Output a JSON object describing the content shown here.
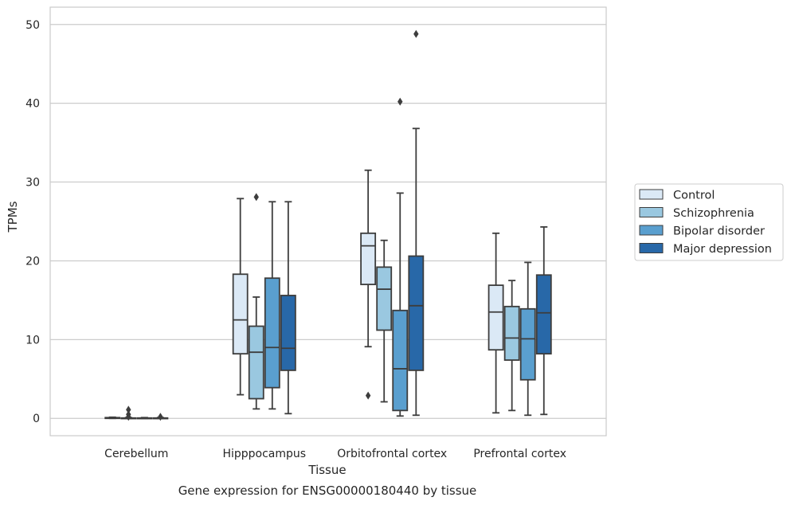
{
  "chart_data": {
    "type": "box",
    "title": "",
    "caption": "Gene expression for ENSG00000180440 by tissue",
    "xlabel": "Tissue",
    "ylabel": "TPMs",
    "ylim": [
      -2.2,
      52.2
    ],
    "yticks": [
      0,
      10,
      20,
      30,
      40,
      50
    ],
    "grid": "horizontal",
    "legend_position": "right",
    "categories": [
      "Cerebellum",
      "Hipppocampus",
      "Orbitofrontal cortex",
      "Prefrontal cortex"
    ],
    "series": [
      {
        "name": "Control",
        "color": "#dbe9f6",
        "boxes": [
          {
            "whislo": 0.0,
            "q1": 0.0,
            "med": 0.05,
            "q3": 0.1,
            "whishi": 0.15,
            "fliers": []
          },
          {
            "whislo": 3.0,
            "q1": 8.2,
            "med": 12.5,
            "q3": 18.3,
            "whishi": 27.9,
            "fliers": []
          },
          {
            "whislo": 9.1,
            "q1": 17.0,
            "med": 21.9,
            "q3": 23.5,
            "whishi": 31.5,
            "fliers": [
              2.9
            ]
          },
          {
            "whislo": 0.7,
            "q1": 8.7,
            "med": 13.5,
            "q3": 16.9,
            "whishi": 23.5,
            "fliers": []
          }
        ]
      },
      {
        "name": "Schizophrenia",
        "color": "#9ac8e0",
        "boxes": [
          {
            "whislo": 0.0,
            "q1": 0.0,
            "med": 0.02,
            "q3": 0.05,
            "whishi": 0.1,
            "fliers": [
              1.1,
              0.5,
              0.2
            ]
          },
          {
            "whislo": 1.2,
            "q1": 2.5,
            "med": 8.4,
            "q3": 11.7,
            "whishi": 15.4,
            "fliers": [
              28.1
            ]
          },
          {
            "whislo": 2.1,
            "q1": 11.2,
            "med": 16.4,
            "q3": 19.2,
            "whishi": 22.6,
            "fliers": []
          },
          {
            "whislo": 1.0,
            "q1": 7.4,
            "med": 10.2,
            "q3": 14.2,
            "whishi": 17.5,
            "fliers": []
          }
        ]
      },
      {
        "name": "Bipolar disorder",
        "color": "#5a9fcf",
        "boxes": [
          {
            "whislo": 0.0,
            "q1": 0.0,
            "med": 0.02,
            "q3": 0.05,
            "whishi": 0.1,
            "fliers": []
          },
          {
            "whislo": 1.2,
            "q1": 3.9,
            "med": 9.0,
            "q3": 17.8,
            "whishi": 27.5,
            "fliers": []
          },
          {
            "whislo": 0.3,
            "q1": 1.0,
            "med": 6.3,
            "q3": 13.7,
            "whishi": 28.6,
            "fliers": [
              40.2
            ]
          },
          {
            "whislo": 0.4,
            "q1": 4.9,
            "med": 10.1,
            "q3": 13.9,
            "whishi": 19.8,
            "fliers": []
          }
        ]
      },
      {
        "name": "Major depression",
        "color": "#2868a8",
        "boxes": [
          {
            "whislo": 0.0,
            "q1": 0.0,
            "med": 0.02,
            "q3": 0.05,
            "whishi": 0.1,
            "fliers": [
              0.2
            ]
          },
          {
            "whislo": 0.6,
            "q1": 6.1,
            "med": 8.9,
            "q3": 15.6,
            "whishi": 27.5,
            "fliers": []
          },
          {
            "whislo": 0.4,
            "q1": 6.1,
            "med": 14.3,
            "q3": 20.6,
            "whishi": 36.8,
            "fliers": [
              48.8
            ]
          },
          {
            "whislo": 0.5,
            "q1": 8.2,
            "med": 13.4,
            "q3": 18.2,
            "whishi": 24.3,
            "fliers": []
          }
        ]
      }
    ]
  }
}
